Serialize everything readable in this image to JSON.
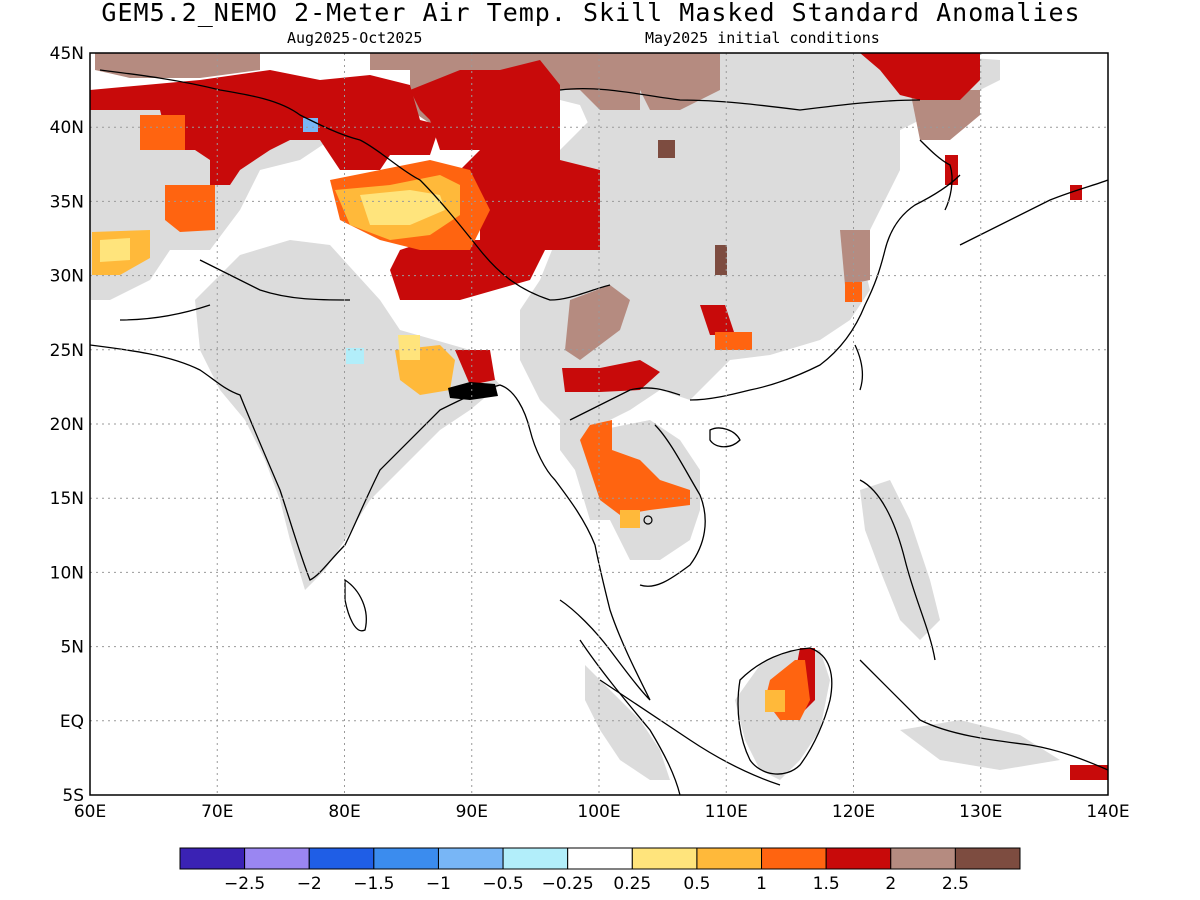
{
  "title": "GEM5.2_NEMO 2-Meter Air Temp. Skill Masked Standard Anomalies",
  "subtitle_left": "Aug2025-Oct2025",
  "subtitle_right": "May2025 initial conditions",
  "lat_labels": [
    "45N",
    "40N",
    "35N",
    "30N",
    "25N",
    "20N",
    "15N",
    "10N",
    "5N",
    "EQ",
    "5S"
  ],
  "lon_labels": [
    "60E",
    "70E",
    "80E",
    "90E",
    "100E",
    "110E",
    "120E",
    "130E",
    "140E"
  ],
  "colorbar": {
    "colors": [
      "#3a22b4",
      "#9a86f2",
      "#1f5ee6",
      "#3b8cee",
      "#78b6f6",
      "#b2eefa",
      "#ffffff",
      "#ffe47c",
      "#ffb93a",
      "#ff6410",
      "#c80a0a",
      "#b58b80",
      "#7d4c40"
    ],
    "labels": [
      "-2.5",
      "-2",
      "-1.5",
      "-1",
      "-0.5",
      "-0.25",
      "0.25",
      "0.5",
      "1",
      "1.5",
      "2",
      "2.5"
    ]
  },
  "regions": [
    {
      "name": "grey-mask-central-asia",
      "color": "#dcdcdc"
    },
    {
      "name": "grey-mask-india",
      "color": "#dcdcdc"
    },
    {
      "name": "grey-mask-china",
      "color": "#dcdcdc"
    },
    {
      "name": "grey-mask-indochina",
      "color": "#dcdcdc"
    },
    {
      "name": "grey-mask-borneo",
      "color": "#dcdcdc"
    },
    {
      "name": "grey-mask-sumatra",
      "color": "#dcdcdc"
    },
    {
      "name": "grey-mask-philippines",
      "color": "#dcdcdc"
    },
    {
      "name": "warm-anomaly-tibet",
      "color": "#c80a0a"
    },
    {
      "name": "warm-anomaly-mongolia",
      "color": "#c80a0a"
    },
    {
      "name": "warm-anomaly-northeast-china",
      "color": "#c80a0a"
    },
    {
      "name": "warm-anomaly-pakistan",
      "color": "#c80a0a"
    },
    {
      "name": "anomaly-west-tibet",
      "color": "#ff6410"
    },
    {
      "name": "anomaly-thailand",
      "color": "#ff6410"
    },
    {
      "name": "anomaly-borneo",
      "color": "#ff6410"
    },
    {
      "name": "anomaly-afghanistan",
      "color": "#ff6410"
    },
    {
      "name": "anomaly-tarim",
      "color": "#ffb93a"
    },
    {
      "name": "anomaly-bengal",
      "color": "#ffb93a"
    },
    {
      "name": "anomaly-iran-border",
      "color": "#ffb93a"
    },
    {
      "name": "brown-mongolia",
      "color": "#b58b80"
    },
    {
      "name": "brown-kazakhstan",
      "color": "#b58b80"
    },
    {
      "name": "brown-yunnan",
      "color": "#b58b80"
    },
    {
      "name": "dark-brown-kyrgyz",
      "color": "#7d4c40"
    }
  ]
}
